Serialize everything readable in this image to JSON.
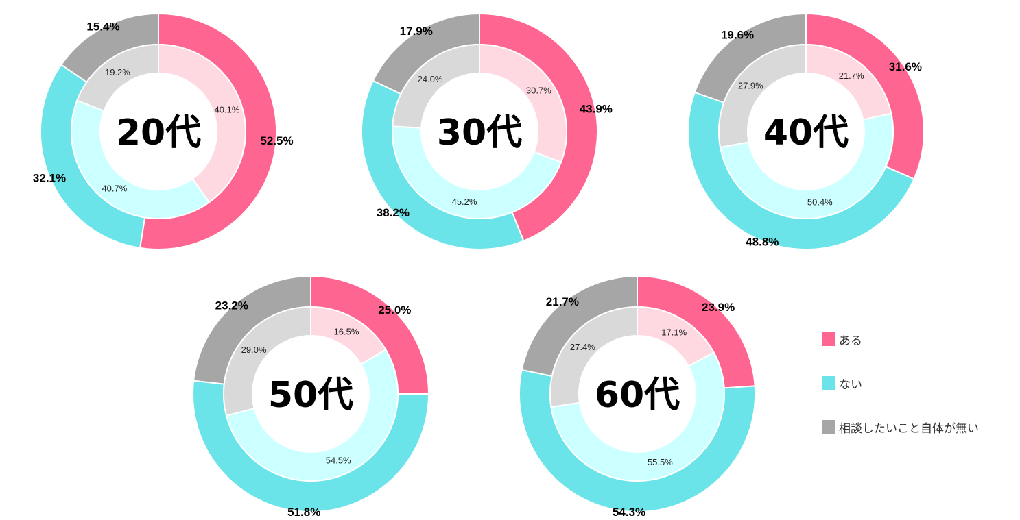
{
  "chart_data": {
    "type": "pie",
    "legend": {
      "placement": "right",
      "items": [
        {
          "label": "ある",
          "color": "#ff6591"
        },
        {
          "label": "ない",
          "color": "#6ae4e8"
        },
        {
          "label": "相談したいこと自体が無い",
          "color": "#a6a6a6"
        }
      ]
    },
    "inner_colors": [
      "#ffd9e2",
      "#ccffff",
      "#d9d9d9"
    ],
    "charts": [
      {
        "title": "20代",
        "outer": [
          52.5,
          32.1,
          15.4
        ],
        "inner": [
          40.1,
          40.7,
          19.2
        ],
        "outer_labels": [
          "52.5%",
          "32.1%",
          "15.4%"
        ],
        "inner_labels": [
          "40.1%",
          "40.7%",
          "19.2%"
        ]
      },
      {
        "title": "30代",
        "outer": [
          43.9,
          38.2,
          17.9
        ],
        "inner": [
          30.7,
          45.2,
          24.0
        ],
        "outer_labels": [
          "43.9%",
          "38.2%",
          "17.9%"
        ],
        "inner_labels": [
          "30.7%",
          "45.2%",
          "24.0%"
        ]
      },
      {
        "title": "40代",
        "outer": [
          31.6,
          48.8,
          19.6
        ],
        "inner": [
          21.7,
          50.4,
          27.9
        ],
        "outer_labels": [
          "31.6%",
          "48.8%",
          "19.6%"
        ],
        "inner_labels": [
          "21.7%",
          "50.4%",
          "27.9%"
        ]
      },
      {
        "title": "50代",
        "outer": [
          25.0,
          51.8,
          23.2
        ],
        "inner": [
          16.5,
          54.5,
          29.0
        ],
        "outer_labels": [
          "25.0%",
          "51.8%",
          "23.2%"
        ],
        "inner_labels": [
          "16.5%",
          "54.5%",
          "29.0%"
        ]
      },
      {
        "title": "60代",
        "outer": [
          23.9,
          54.3,
          21.7
        ],
        "inner": [
          17.1,
          55.5,
          27.4
        ],
        "outer_labels": [
          "23.9%",
          "54.3%",
          "21.7%"
        ],
        "inner_labels": [
          "17.1%",
          "55.5%",
          "27.4%"
        ]
      }
    ]
  }
}
